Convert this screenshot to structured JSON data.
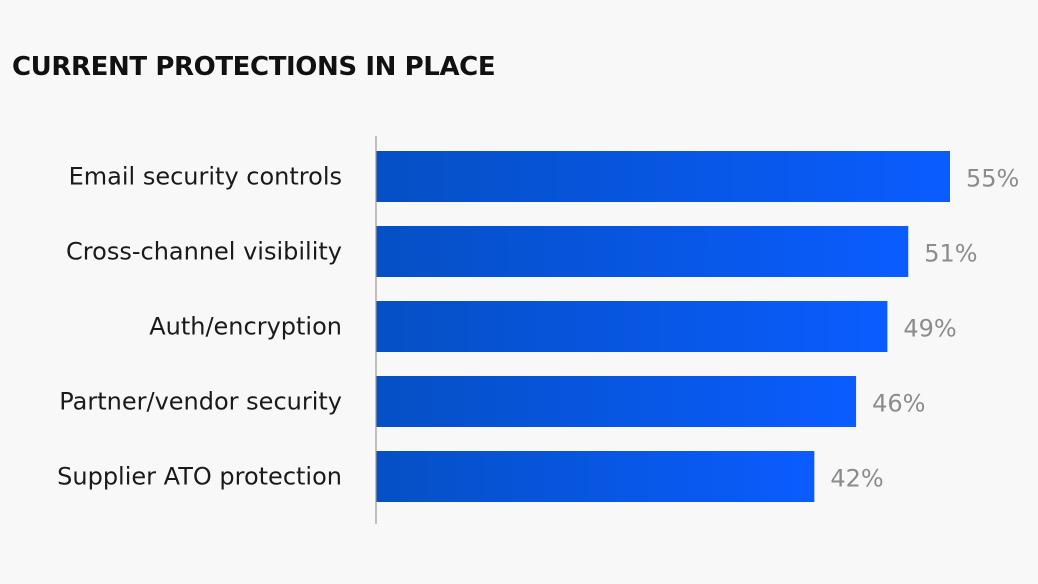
{
  "chart_data": {
    "type": "bar",
    "orientation": "horizontal",
    "title": "CURRENT PROTECTIONS IN PLACE",
    "categories": [
      "Email security controls",
      "Cross-channel visibility",
      "Auth/encryption",
      "Partner/vendor security",
      "Supplier ATO protection"
    ],
    "values": [
      55,
      51,
      49,
      46,
      42
    ],
    "value_labels": [
      "55%",
      "51%",
      "49%",
      "46%",
      "42%"
    ],
    "unit": "%",
    "xlim": [
      0,
      55
    ],
    "grid": false,
    "legend": "none",
    "colors": {
      "bar_start": "#0550c4",
      "bar_end": "#0a5cff",
      "axis": "#999999",
      "value_text": "#8c8c8c",
      "label_text": "#1a1a1a",
      "title_text": "#111111",
      "background": "#f8f8f8"
    }
  }
}
